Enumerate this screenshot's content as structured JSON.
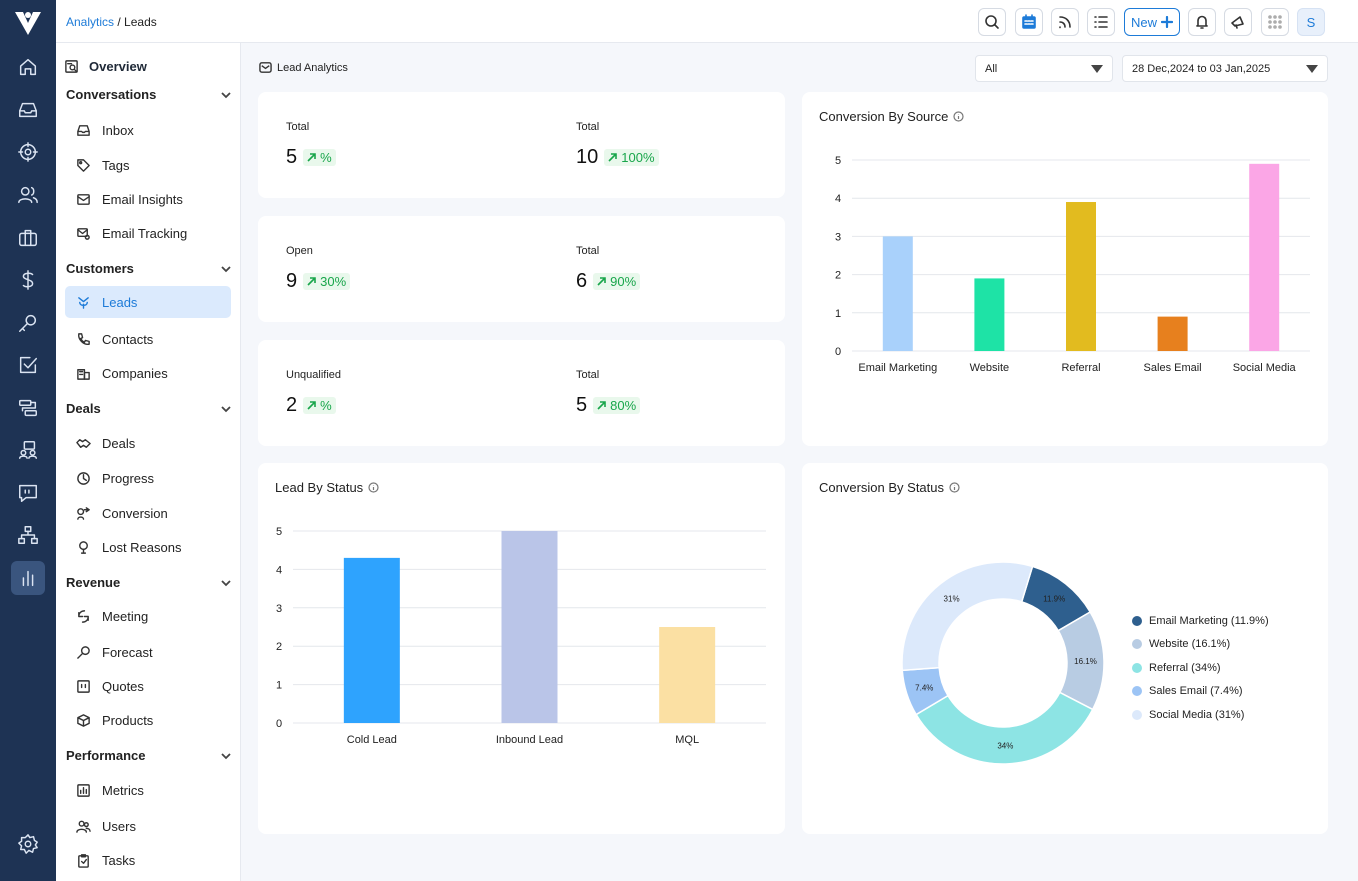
{
  "breadcrumb": {
    "parent": "Analytics",
    "separator": " / ",
    "current": "Leads"
  },
  "topbar": {
    "new_label": "New",
    "avatar": "S"
  },
  "sidebar": {
    "overview": "Overview",
    "sections": [
      {
        "title": "Conversations",
        "items": [
          "Inbox",
          "Tags",
          "Email Insights",
          "Email Tracking"
        ]
      },
      {
        "title": "Customers",
        "items": [
          "Leads",
          "Contacts",
          "Companies"
        ]
      },
      {
        "title": "Deals",
        "items": [
          "Deals",
          "Progress",
          "Conversion",
          "Lost Reasons"
        ]
      },
      {
        "title": "Revenue",
        "items": [
          "Meeting",
          "Forecast",
          "Quotes",
          "Products"
        ]
      },
      {
        "title": "Performance",
        "items": [
          "Metrics",
          "Users",
          "Tasks"
        ]
      }
    ],
    "active_item": "Leads"
  },
  "main": {
    "section_title": "Lead Analytics",
    "filter_value": "All",
    "date_range": "28 Dec,2024 to 03 Jan,2025"
  },
  "stats": [
    {
      "label": "Total",
      "value": "5",
      "change": "%"
    },
    {
      "label": "Total",
      "value": "10",
      "change": "100%"
    },
    {
      "label": "Open",
      "value": "9",
      "change": "30%"
    },
    {
      "label": "Total",
      "value": "6",
      "change": "90%"
    },
    {
      "label": "Unqualified",
      "value": "2",
      "change": "%"
    },
    {
      "label": "Total",
      "value": "5",
      "change": "80%"
    }
  ],
  "chart_data": [
    {
      "title": "Conversion By Source",
      "type": "bar",
      "categories": [
        "Email Marketing",
        "Website",
        "Referral",
        "Sales Email",
        "Social Media"
      ],
      "values": [
        3,
        1.9,
        3.9,
        0.9,
        4.9
      ],
      "colors": [
        "#a9d1fb",
        "#1ee3a6",
        "#e2bb1f",
        "#e7801e",
        "#fba6e6"
      ],
      "yticks": [
        0,
        1,
        2,
        3,
        4,
        5
      ],
      "ylim": [
        0,
        5
      ],
      "grid": true
    },
    {
      "title": "Lead By Status",
      "type": "bar",
      "categories": [
        "Cold Lead",
        "Inbound Lead",
        "MQL"
      ],
      "values": [
        4.3,
        5,
        2.5
      ],
      "colors": [
        "#2ea3fe",
        "#bac5e8",
        "#fbe0a3"
      ],
      "yticks": [
        0,
        1,
        2,
        3,
        4,
        5
      ],
      "ylim": [
        0,
        5
      ],
      "grid": true
    },
    {
      "title": "Conversion By Status",
      "type": "pie",
      "series": [
        {
          "name": "Email Marketing (11.9%)",
          "label": "11.9%",
          "value": 11.9,
          "color": "#2e5f8e"
        },
        {
          "name": "Website (16.1%)",
          "label": "16.1%",
          "value": 16.1,
          "color": "#b8cce3"
        },
        {
          "name": "Referral (34%)",
          "label": "34%",
          "value": 34,
          "color": "#8de4e4"
        },
        {
          "name": "Sales Email (7.4%)",
          "label": "7.4%",
          "value": 7.4,
          "color": "#9cc4f5"
        },
        {
          "name": "Social Media (31%)",
          "label": "31%",
          "value": 31,
          "color": "#dce9fb"
        }
      ],
      "legend": "right"
    }
  ]
}
